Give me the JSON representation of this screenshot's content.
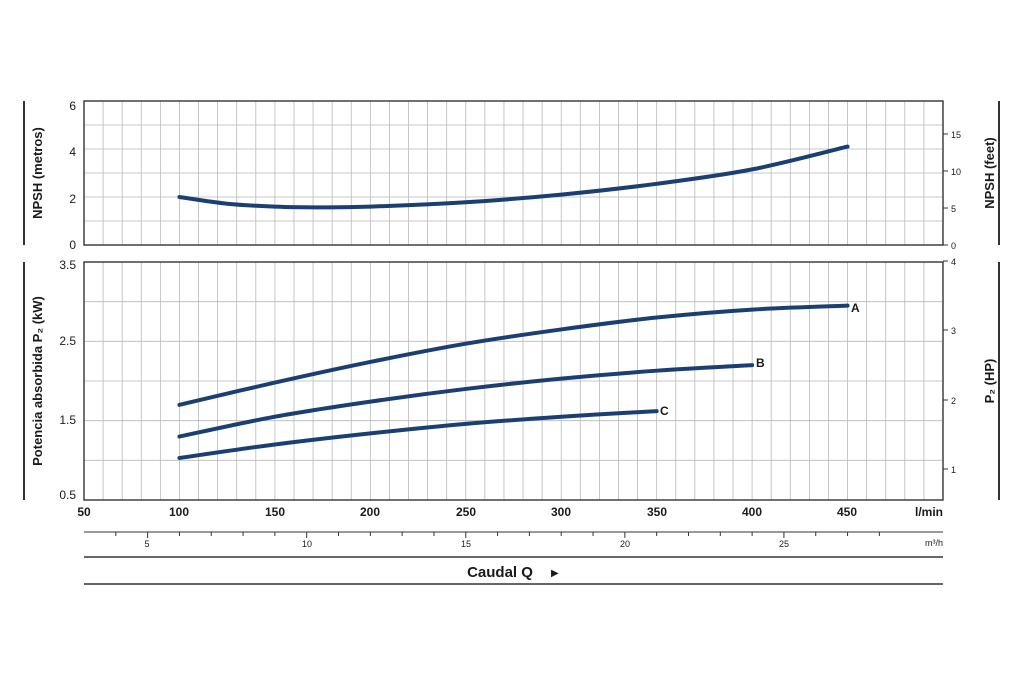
{
  "chart_data": [
    {
      "type": "line",
      "panel": "npsh",
      "ylabel": "NPSH (metros)",
      "ylabel_right": "NPSH (feet)",
      "ylim": [
        0,
        6
      ],
      "yticks": [
        "0",
        "2",
        "4",
        "6"
      ],
      "ylim_right": [
        0,
        19.7
      ],
      "yticks_right": [
        "0",
        "5",
        "10",
        "15"
      ],
      "xlim": [
        50,
        500
      ],
      "grid": true,
      "series": [
        {
          "label": "",
          "x": [
            100,
            125,
            150,
            175,
            200,
            250,
            300,
            350,
            400,
            450
          ],
          "y": [
            2.0,
            1.72,
            1.6,
            1.57,
            1.6,
            1.78,
            2.1,
            2.55,
            3.15,
            4.1
          ]
        }
      ]
    },
    {
      "type": "line",
      "panel": "power",
      "ylabel": "Potencia absorbida P₂ (kW)",
      "ylabel_right": "P₂ (HP)",
      "ylim": [
        0.5,
        3.5
      ],
      "yticks": [
        "0.5",
        "1.5",
        "2.5",
        "3.5"
      ],
      "ylim_right": [
        0.67,
        4.0
      ],
      "yticks_right": [
        "1",
        "2",
        "3",
        "4"
      ],
      "xlim": [
        50,
        500
      ],
      "grid": true,
      "series": [
        {
          "label": "A",
          "x": [
            100,
            150,
            200,
            250,
            300,
            350,
            400,
            450
          ],
          "y": [
            1.7,
            1.98,
            2.24,
            2.47,
            2.65,
            2.8,
            2.9,
            2.95
          ]
        },
        {
          "label": "B",
          "x": [
            100,
            150,
            200,
            250,
            300,
            350,
            400
          ],
          "y": [
            1.3,
            1.55,
            1.74,
            1.9,
            2.03,
            2.13,
            2.2
          ]
        },
        {
          "label": "C",
          "x": [
            100,
            150,
            200,
            250,
            300,
            350
          ],
          "y": [
            1.03,
            1.2,
            1.34,
            1.46,
            1.55,
            1.62
          ]
        }
      ]
    }
  ],
  "x_axis": {
    "lmin_ticks": [
      "50",
      "100",
      "150",
      "200",
      "250",
      "300",
      "350",
      "400",
      "450"
    ],
    "lmin_unit": "l/min",
    "m3h_ticks": [
      "5",
      "10",
      "15",
      "20",
      "25"
    ],
    "m3h_unit": "m³/h",
    "title": "Caudal Q",
    "title_arrow": "▶"
  },
  "colors": {
    "curve": "#1c3f73",
    "grid": "#b9b9b9",
    "axis": "#333333"
  }
}
